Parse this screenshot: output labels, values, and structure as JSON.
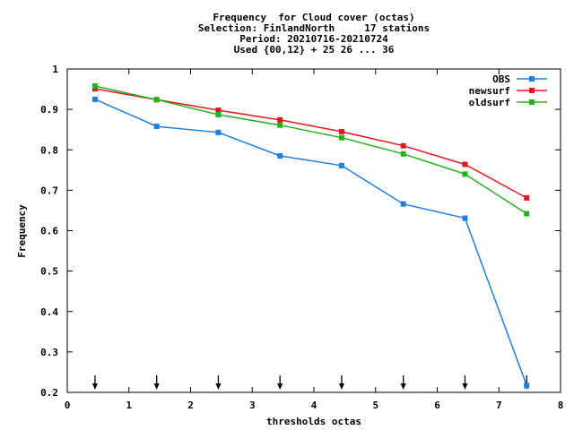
{
  "chart_data": {
    "type": "line",
    "title_lines": [
      "Frequency  for Cloud cover (octas)",
      "Selection: FinlandNorth     17 stations",
      "Period: 20210716-20210724",
      "Used {00,12} + 25 26 ... 36"
    ],
    "xlabel": "thresholds octas",
    "ylabel": "Frequency",
    "xlim": [
      0,
      8
    ],
    "ylim": [
      0.2,
      1
    ],
    "xticks": [
      0,
      1,
      2,
      3,
      4,
      5,
      6,
      7,
      8
    ],
    "yticks": [
      0.2,
      0.3,
      0.4,
      0.5,
      0.6,
      0.7,
      0.8,
      0.9,
      1
    ],
    "xtick_labels": [
      "0",
      "1",
      "2",
      "3",
      "4",
      "5",
      "6",
      "7",
      "8"
    ],
    "ytick_labels": [
      "0.2",
      "0.3",
      "0.4",
      "0.5",
      "0.6",
      "0.7",
      "0.8",
      "0.9",
      "1"
    ],
    "grid": false,
    "legend_position": "top-right",
    "x": [
      0.45,
      1.45,
      2.45,
      3.45,
      4.45,
      5.45,
      6.45,
      7.45
    ],
    "series": [
      {
        "name": "OBS",
        "color": "#1f7fe0",
        "values": [
          0.925,
          0.858,
          0.843,
          0.785,
          0.761,
          0.666,
          0.631,
          0.217
        ]
      },
      {
        "name": "newsurf",
        "color": "#e0191e",
        "values": [
          0.951,
          0.924,
          0.898,
          0.874,
          0.845,
          0.81,
          0.764,
          0.681
        ]
      },
      {
        "name": "oldsurf",
        "color": "#23b21e",
        "values": [
          0.958,
          0.924,
          0.887,
          0.861,
          0.83,
          0.79,
          0.74,
          0.642
        ]
      }
    ],
    "arrow_markers_x": [
      0.45,
      1.45,
      2.45,
      3.45,
      4.45,
      5.45,
      6.45,
      7.45
    ]
  }
}
